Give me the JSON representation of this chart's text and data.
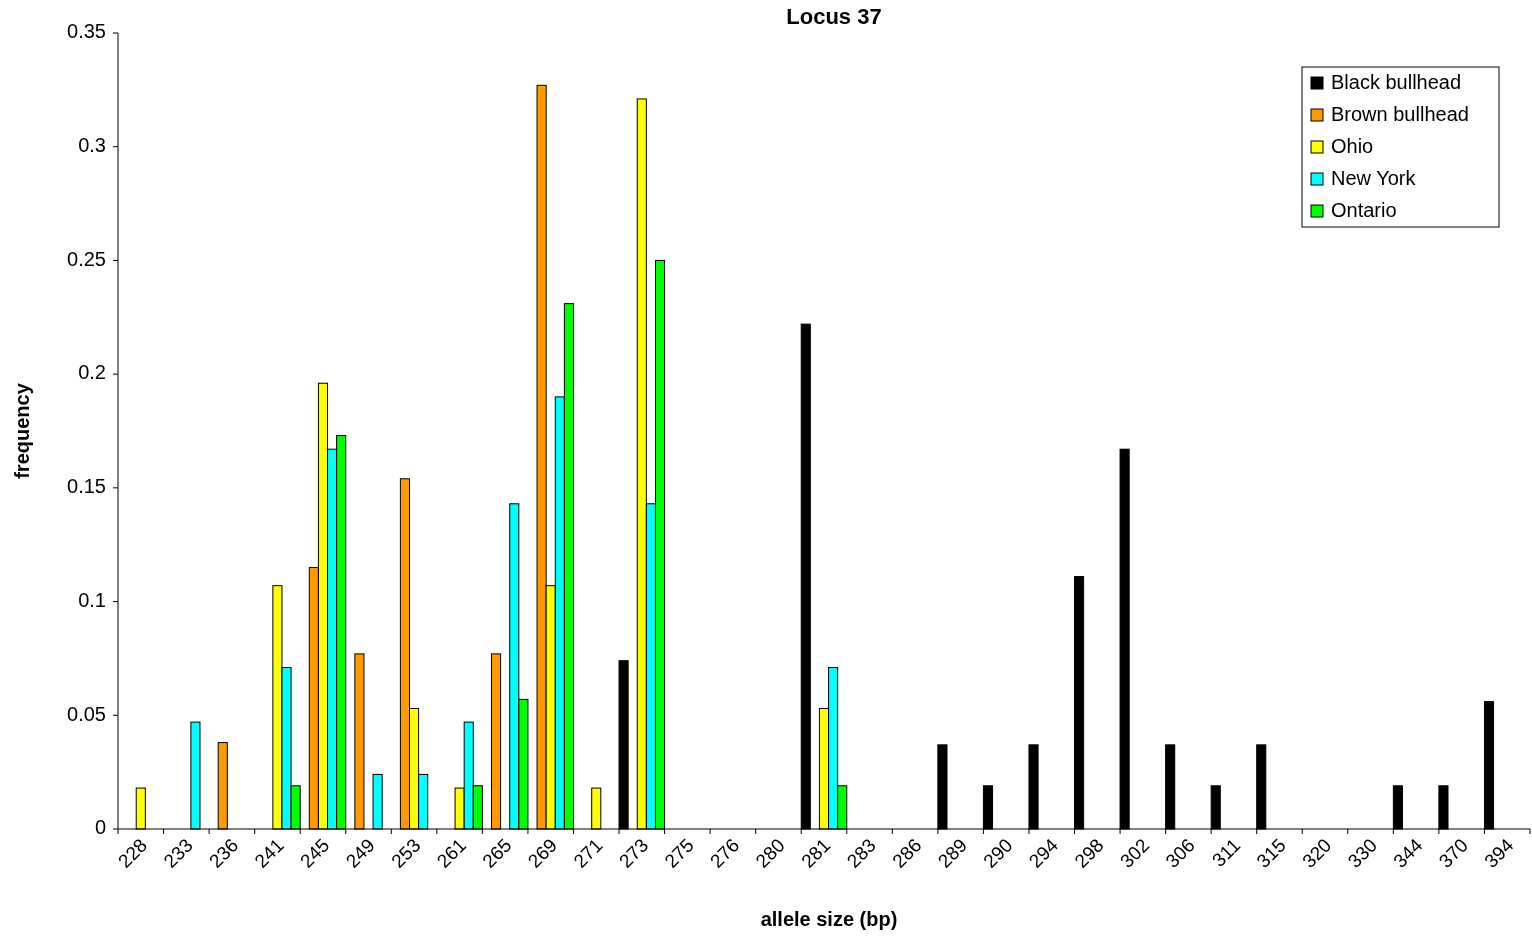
{
  "chart_data": {
    "type": "bar",
    "title": "Locus 37",
    "xlabel": "allele size (bp)",
    "ylabel": "frequency",
    "categories": [
      "228",
      "233",
      "236",
      "241",
      "245",
      "249",
      "253",
      "261",
      "265",
      "269",
      "271",
      "273",
      "275",
      "276",
      "280",
      "281",
      "283",
      "286",
      "289",
      "290",
      "294",
      "298",
      "302",
      "306",
      "311",
      "315",
      "320",
      "330",
      "344",
      "370",
      "394"
    ],
    "series": [
      {
        "name": "Black bullhead",
        "color": "#000000",
        "values": [
          null,
          null,
          null,
          null,
          null,
          null,
          null,
          null,
          null,
          null,
          null,
          0.074,
          null,
          null,
          null,
          0.222,
          null,
          null,
          0.037,
          0.019,
          0.037,
          0.111,
          0.167,
          0.037,
          0.019,
          0.037,
          null,
          null,
          0.019,
          0.019,
          0.056
        ]
      },
      {
        "name": "Brown bullhead",
        "color": "#ff9900",
        "values": [
          null,
          null,
          0.038,
          null,
          0.115,
          0.077,
          0.154,
          null,
          0.077,
          0.327,
          null,
          null,
          null,
          null,
          null,
          null,
          null,
          null,
          null,
          null,
          null,
          null,
          null,
          null,
          null,
          null,
          null,
          null,
          null,
          null,
          null
        ]
      },
      {
        "name": "Ohio",
        "color": "#ffff00",
        "values": [
          0.018,
          null,
          null,
          0.107,
          0.196,
          null,
          0.053,
          0.018,
          null,
          0.107,
          0.018,
          0.321,
          null,
          null,
          null,
          0.053,
          null,
          null,
          null,
          null,
          null,
          null,
          null,
          null,
          null,
          null,
          null,
          null,
          null,
          null,
          null
        ]
      },
      {
        "name": "New York",
        "color": "#00ffff",
        "values": [
          null,
          0.047,
          null,
          0.071,
          0.167,
          0.024,
          0.024,
          0.047,
          0.143,
          0.19,
          null,
          0.143,
          null,
          null,
          null,
          0.071,
          null,
          null,
          null,
          null,
          null,
          null,
          null,
          null,
          null,
          null,
          null,
          null,
          null,
          null,
          null
        ]
      },
      {
        "name": "Ontario",
        "color": "#00ff00",
        "values": [
          null,
          null,
          null,
          0.019,
          0.173,
          null,
          null,
          0.019,
          0.057,
          0.231,
          null,
          0.25,
          null,
          null,
          null,
          0.019,
          null,
          null,
          null,
          null,
          null,
          null,
          null,
          null,
          null,
          null,
          null,
          null,
          null,
          null,
          null
        ]
      }
    ],
    "ylim": [
      0,
      0.35
    ],
    "yticks": [
      0,
      0.05,
      0.1,
      0.15,
      0.2,
      0.25,
      0.3,
      0.35
    ],
    "grid": false,
    "legend": "top right"
  }
}
